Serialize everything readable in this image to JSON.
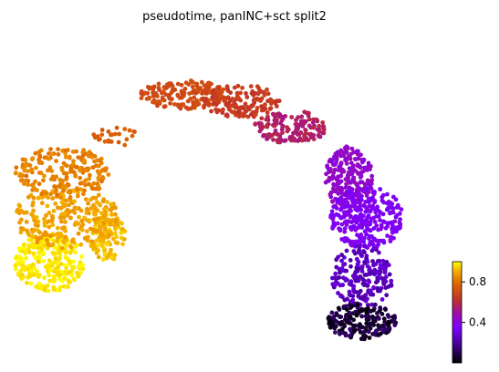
{
  "chart_data": {
    "type": "scatter",
    "title": "pseudotime, panINC+sct split2",
    "xlabel": "",
    "ylabel": "",
    "grid": false,
    "colormap": "gnuplot",
    "colorbar": {
      "range": [
        0,
        1
      ],
      "ticks": [
        0.4,
        0.8
      ],
      "tick_labels": [
        "0.4",
        "0.8"
      ],
      "placement": "right"
    },
    "clusters": [
      {
        "label": "left lobe lower (yellow)",
        "x": 0.09,
        "y": 0.3,
        "value_range": [
          0.95,
          1.0
        ],
        "points": 260
      },
      {
        "label": "left lobe right bulge",
        "x": 0.22,
        "y": 0.38,
        "value_range": [
          0.9,
          0.96
        ],
        "points": 110
      },
      {
        "label": "left lobe middle",
        "x": 0.13,
        "y": 0.44,
        "value_range": [
          0.86,
          0.92
        ],
        "points": 260
      },
      {
        "label": "left lobe upper (orange)",
        "x": 0.12,
        "y": 0.58,
        "value_range": [
          0.8,
          0.86
        ],
        "points": 200
      },
      {
        "label": "bridge",
        "x": 0.24,
        "y": 0.69,
        "value_range": [
          0.74,
          0.78
        ],
        "points": 25
      },
      {
        "label": "arc top left",
        "x": 0.39,
        "y": 0.82,
        "value_range": [
          0.68,
          0.73
        ],
        "points": 170
      },
      {
        "label": "arc top",
        "x": 0.52,
        "y": 0.8,
        "value_range": [
          0.62,
          0.68
        ],
        "points": 140
      },
      {
        "label": "arc descending",
        "x": 0.63,
        "y": 0.72,
        "value_range": [
          0.52,
          0.6
        ],
        "points": 150
      },
      {
        "label": "right column upper (magenta-purple)",
        "x": 0.76,
        "y": 0.56,
        "value_range": [
          0.4,
          0.47
        ],
        "points": 210
      },
      {
        "label": "right column middle (purple)",
        "x": 0.8,
        "y": 0.44,
        "value_range": [
          0.33,
          0.4
        ],
        "points": 280
      },
      {
        "label": "right column lower",
        "x": 0.79,
        "y": 0.26,
        "value_range": [
          0.2,
          0.3
        ],
        "points": 200
      },
      {
        "label": "right column bottom (dark)",
        "x": 0.79,
        "y": 0.12,
        "value_range": [
          0.0,
          0.15
        ],
        "points": 190
      }
    ]
  }
}
